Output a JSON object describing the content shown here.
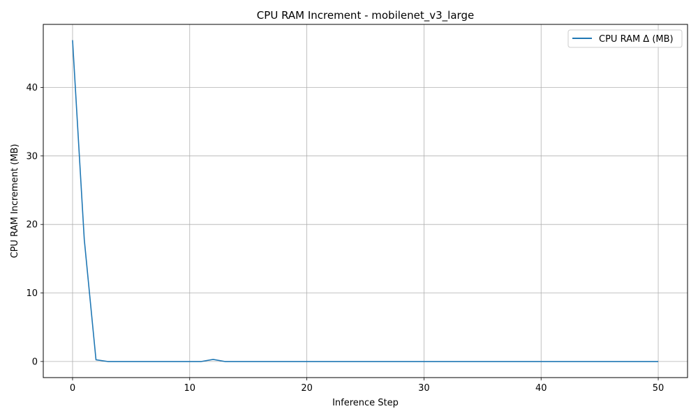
{
  "chart_data": {
    "type": "line",
    "title": "CPU RAM Increment - mobilenet_v3_large",
    "xlabel": "Inference Step",
    "ylabel": "CPU RAM Increment (MB)",
    "xlim": [
      -2.5,
      52.5
    ],
    "ylim": [
      -2.35,
      49.2
    ],
    "xticks": [
      0,
      10,
      20,
      30,
      40,
      50
    ],
    "yticks": [
      0,
      10,
      20,
      30,
      40
    ],
    "grid": true,
    "legend_position": "top-right",
    "series": [
      {
        "name": "CPU RAM Δ (MB)",
        "color": "#1f77b4",
        "x": [
          0,
          1,
          2,
          3,
          4,
          5,
          6,
          7,
          8,
          9,
          10,
          11,
          12,
          13,
          14,
          15,
          16,
          17,
          18,
          19,
          20,
          21,
          22,
          23,
          24,
          25,
          26,
          27,
          28,
          29,
          30,
          31,
          32,
          33,
          34,
          35,
          36,
          37,
          38,
          39,
          40,
          41,
          42,
          43,
          44,
          45,
          46,
          47,
          48,
          49,
          50
        ],
        "values": [
          46.9,
          17.8,
          0.25,
          0,
          0,
          0,
          0,
          0,
          0,
          0,
          0,
          0,
          0.3,
          0,
          0,
          0,
          0,
          0,
          0,
          0,
          0,
          0,
          0,
          0,
          0,
          0,
          0,
          0,
          0,
          0,
          0,
          0,
          0,
          0,
          0,
          0,
          0,
          0,
          0,
          0,
          0,
          0,
          0,
          0,
          0,
          0,
          0,
          0,
          0,
          0,
          0
        ]
      }
    ]
  }
}
